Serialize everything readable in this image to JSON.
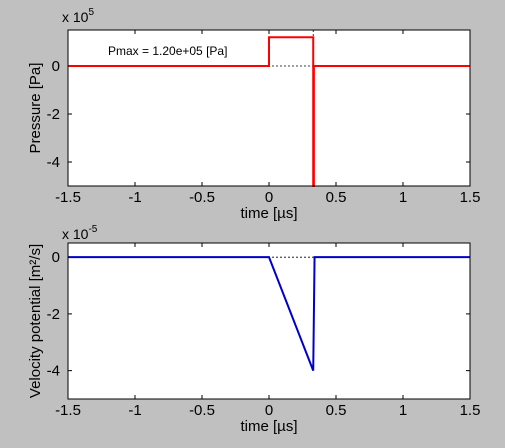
{
  "figure": {
    "background": "#c0c0c0"
  },
  "chart_data": [
    {
      "type": "line",
      "xlabel": "time [µs]",
      "ylabel": "Pressure [Pa]",
      "multiplier_base": "x 10",
      "multiplier_exp": "5",
      "xlim": [
        -1.5,
        1.5
      ],
      "ylim": [
        -5,
        1.5
      ],
      "xticks": [
        -1.5,
        -1,
        -0.5,
        0,
        0.5,
        1,
        1.5
      ],
      "xtick_labels": [
        "-1.5",
        "-1",
        "-0.5",
        "0",
        "0.5",
        "1",
        "1.5"
      ],
      "yticks": [
        0,
        -2,
        -4
      ],
      "ytick_labels": [
        "0",
        "-2",
        "-4"
      ],
      "grid": false,
      "annotation": "Pmax = 1.20e+05 [Pa]",
      "vertical_marker_x": 0.33,
      "series": [
        {
          "color": "#ff0000",
          "x": [
            -1.5,
            0,
            0,
            0.33,
            0.33,
            0.335,
            0.335,
            1.5
          ],
          "y": [
            0,
            0,
            1.2,
            1.2,
            -5,
            -5,
            0,
            0
          ]
        }
      ]
    },
    {
      "type": "line",
      "xlabel": "time [µs]",
      "ylabel": "Velocity potential [m²/s]",
      "multiplier_base": "x 10",
      "multiplier_exp": "-5",
      "xlim": [
        -1.5,
        1.5
      ],
      "ylim": [
        -5,
        0.5
      ],
      "xticks": [
        -1.5,
        -1,
        -0.5,
        0,
        0.5,
        1,
        1.5
      ],
      "xtick_labels": [
        "-1.5",
        "-1",
        "-0.5",
        "0",
        "0.5",
        "1",
        "1.5"
      ],
      "yticks": [
        0,
        -2,
        -4
      ],
      "ytick_labels": [
        "0",
        "-2",
        "-4"
      ],
      "grid": false,
      "series": [
        {
          "color": "#0000cc",
          "x": [
            -1.5,
            0,
            0.33,
            0.34,
            1.5
          ],
          "y": [
            0,
            0,
            -4,
            0,
            0
          ]
        }
      ]
    }
  ]
}
